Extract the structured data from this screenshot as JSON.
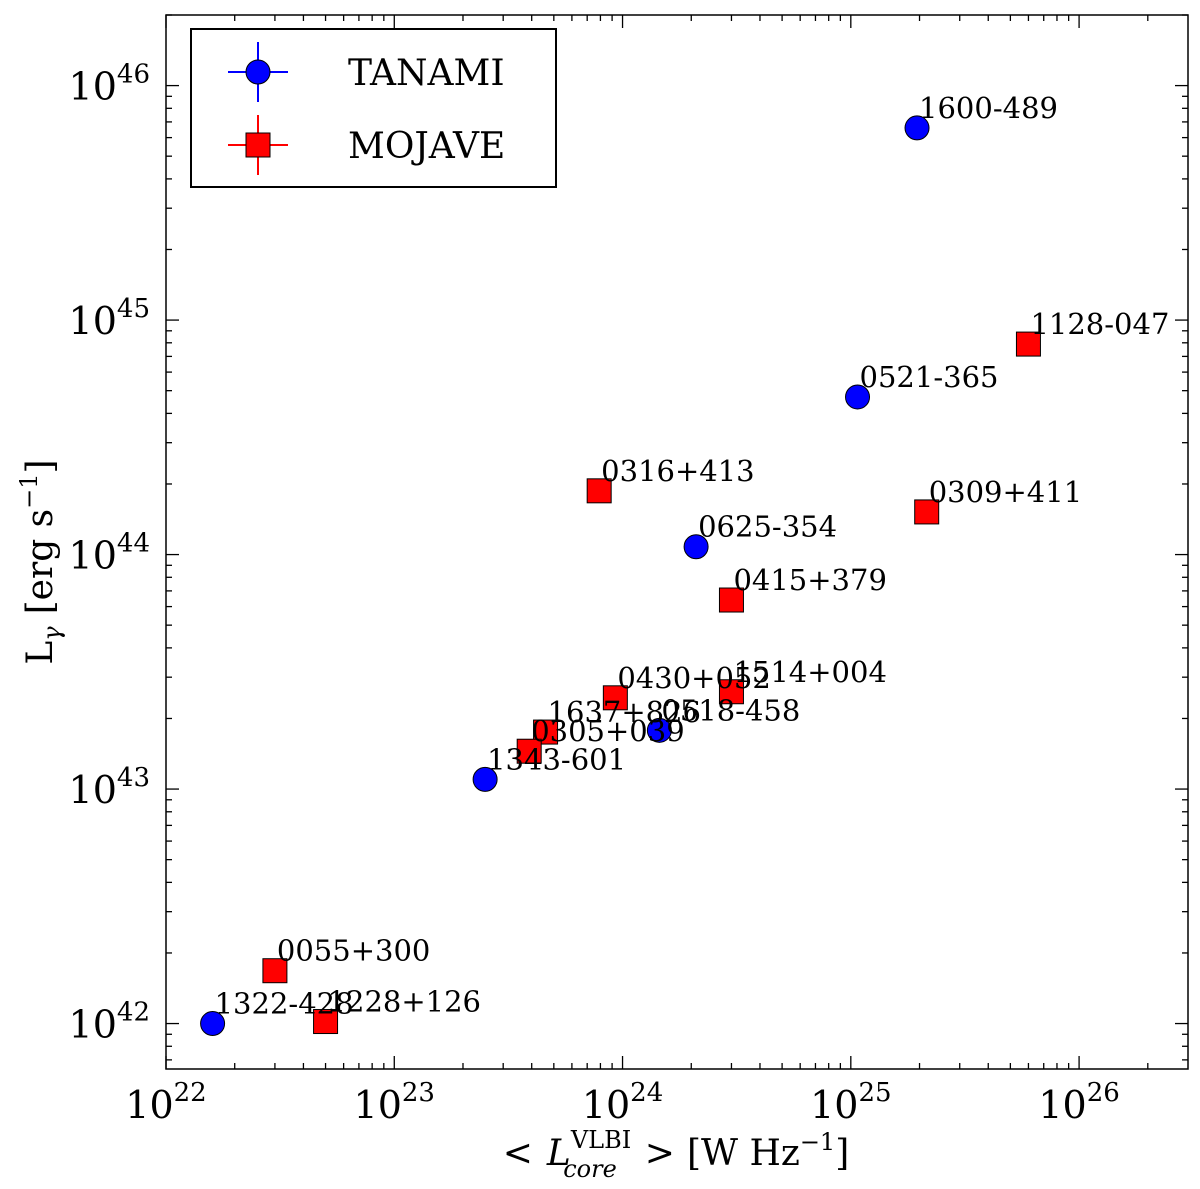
{
  "chart_data": {
    "type": "scatter",
    "xscale": "log",
    "yscale": "log",
    "xlim": [
      1e+22,
      3e+26
    ],
    "ylim": [
      6.4e+41,
      2e+46
    ],
    "x_ticks": [
      {
        "value": 1e+22,
        "base": "10",
        "exp": "22"
      },
      {
        "value": 1e+23,
        "base": "10",
        "exp": "23"
      },
      {
        "value": 1e+24,
        "base": "10",
        "exp": "24"
      },
      {
        "value": 1e+25,
        "base": "10",
        "exp": "25"
      },
      {
        "value": 1e+26,
        "base": "10",
        "exp": "26"
      }
    ],
    "y_ticks": [
      {
        "value": 1e+42,
        "base": "10",
        "exp": "42"
      },
      {
        "value": 1e+43,
        "base": "10",
        "exp": "43"
      },
      {
        "value": 1e+44,
        "base": "10",
        "exp": "44"
      },
      {
        "value": 1e+45,
        "base": "10",
        "exp": "45"
      },
      {
        "value": 1e+46,
        "base": "10",
        "exp": "46"
      }
    ],
    "xlabel": {
      "lt": "<",
      "symbol": "L",
      "sup": "VLBI",
      "sub": "core",
      "gt": ">",
      "unit_open": "[W Hz",
      "unit_exp": "−1",
      "unit_close": "]"
    },
    "ylabel": {
      "symbol": "L",
      "sub": "γ",
      "unit_open": "[erg s",
      "unit_exp": "−1",
      "unit_close": "]"
    },
    "legend": {
      "position": "top-left",
      "entries": [
        {
          "name": "TANAMI",
          "marker": "circle",
          "color": "#0000ff"
        },
        {
          "name": "MOJAVE",
          "marker": "square",
          "color": "#ff0000"
        }
      ]
    },
    "series": [
      {
        "name": "TANAMI",
        "marker": "circle",
        "color": "#0000ff",
        "points": [
          {
            "label": "1600-489",
            "x": 1.95e+25,
            "y": 6.6e+45
          },
          {
            "label": "0521-365",
            "x": 1.07e+25,
            "y": 4.7e+44
          },
          {
            "label": "0625-354",
            "x": 2.1e+24,
            "y": 1.08e+44
          },
          {
            "label": "0518-458",
            "x": 1.45e+24,
            "y": 1.78e+43
          },
          {
            "label": "1343-601",
            "x": 2.5e+23,
            "y": 1.1e+43
          },
          {
            "label": "1322-428",
            "x": 1.6e+22,
            "y": 1e+42
          }
        ]
      },
      {
        "name": "MOJAVE",
        "marker": "square",
        "color": "#ff0000",
        "points": [
          {
            "label": "1128-047",
            "x": 6e+25,
            "y": 7.9e+44
          },
          {
            "label": "0309+411",
            "x": 2.15e+25,
            "y": 1.52e+44
          },
          {
            "label": "0316+413",
            "x": 7.9e+23,
            "y": 1.87e+44
          },
          {
            "label": "0415+379",
            "x": 3e+24,
            "y": 6.4e+43
          },
          {
            "label": "1514+004",
            "x": 3e+24,
            "y": 2.6e+43
          },
          {
            "label": "0430+052",
            "x": 9.3e+23,
            "y": 2.45e+43
          },
          {
            "label": "1637+826",
            "x": 4.6e+23,
            "y": 1.75e+43
          },
          {
            "label": "0305+039",
            "x": 3.9e+23,
            "y": 1.45e+43
          },
          {
            "label": "0055+300",
            "x": 3e+22,
            "y": 1.68e+42
          },
          {
            "label": "1228+126",
            "x": 5e+22,
            "y": 1.02e+42
          }
        ]
      }
    ]
  }
}
